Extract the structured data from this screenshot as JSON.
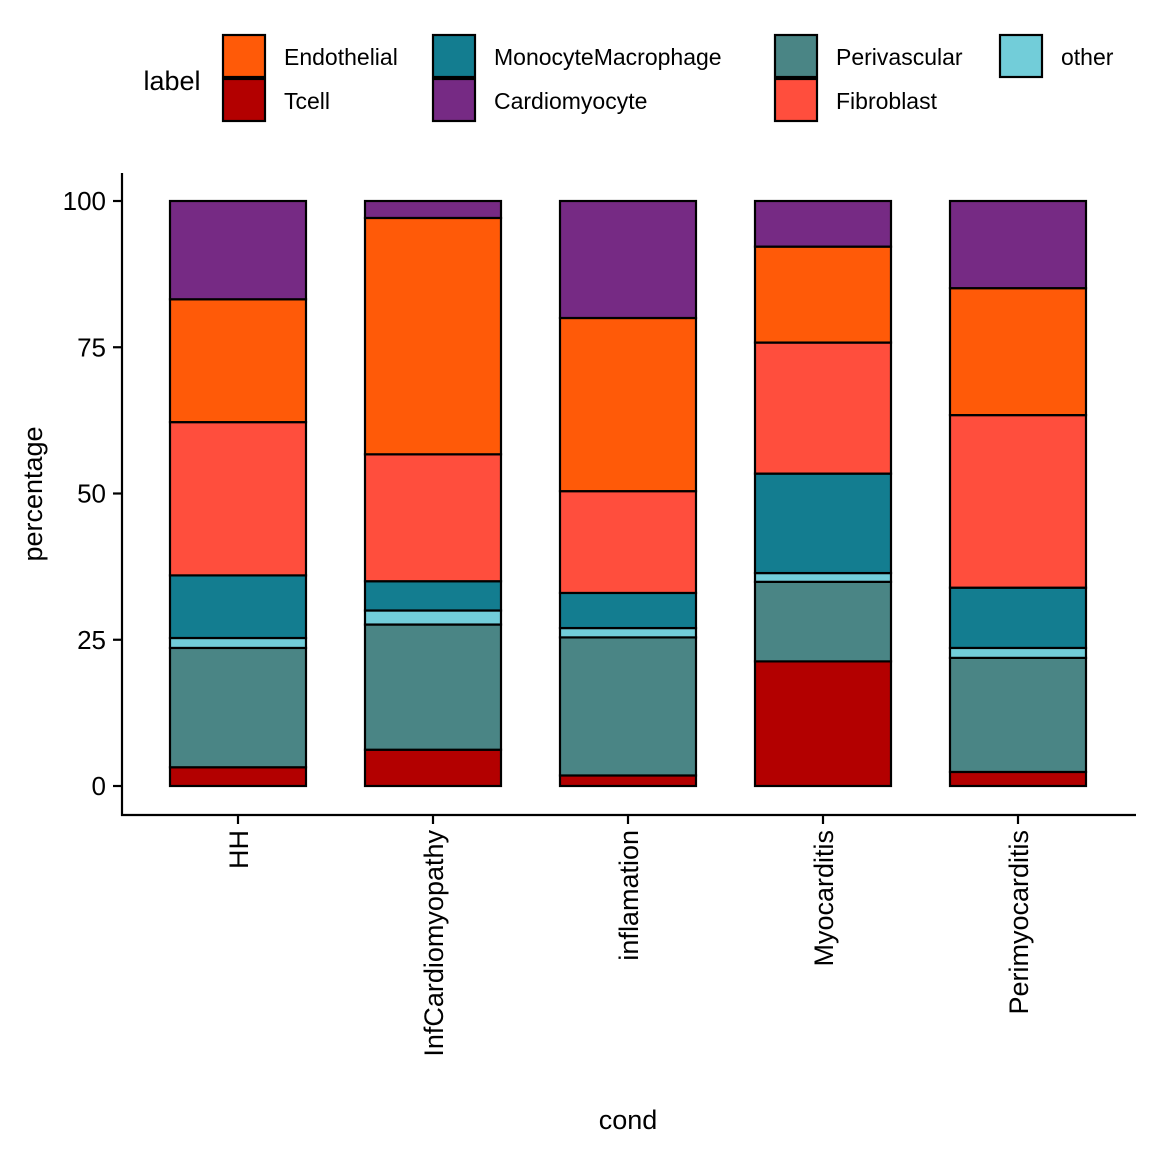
{
  "chart_data": {
    "type": "bar",
    "stacked": true,
    "categories": [
      "HH",
      "InfCardiomyopathy",
      "inflamation",
      "Myocarditis",
      "Perimyocarditis"
    ],
    "xlabel": "cond",
    "ylabel": "percentage",
    "ylim": [
      0,
      100
    ],
    "yticks": [
      0,
      25,
      50,
      75,
      100
    ],
    "grid": false,
    "legend": {
      "title": "label",
      "position": "top"
    },
    "series": [
      {
        "name": "Tcell",
        "color": "#B30000",
        "values": [
          3.2,
          6.2,
          1.8,
          21.3,
          2.4
        ]
      },
      {
        "name": "Perivascular",
        "color": "#4A8585",
        "values": [
          20.4,
          21.4,
          23.6,
          13.6,
          19.5
        ]
      },
      {
        "name": "other",
        "color": "#72CDD9",
        "values": [
          1.7,
          2.4,
          1.6,
          1.5,
          1.7
        ]
      },
      {
        "name": "MonocyteMacrophage",
        "color": "#137D90",
        "values": [
          10.7,
          5.0,
          6.0,
          17.0,
          10.3
        ]
      },
      {
        "name": "Fibroblast",
        "color": "#FF4E3D",
        "values": [
          26.2,
          21.7,
          17.4,
          22.4,
          29.5
        ]
      },
      {
        "name": "Endothelial",
        "color": "#FF5A08",
        "values": [
          21.0,
          40.4,
          29.6,
          16.4,
          21.7
        ]
      },
      {
        "name": "Cardiomyocyte",
        "color": "#762A84",
        "values": [
          16.8,
          2.9,
          20.0,
          7.8,
          14.9
        ]
      }
    ],
    "legend_order": [
      "Endothelial",
      "Tcell",
      "MonocyteMacrophage",
      "Cardiomyocyte",
      "Perivascular",
      "Fibroblast",
      "other"
    ]
  }
}
